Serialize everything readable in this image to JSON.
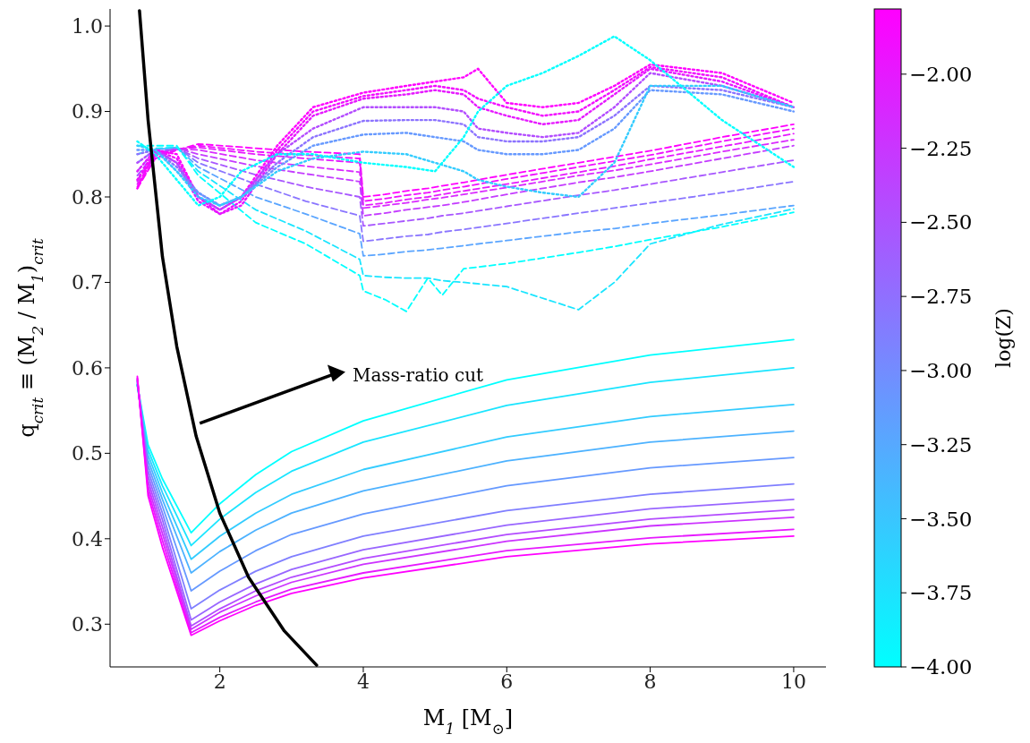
{
  "chart_data": {
    "type": "line",
    "xlabel": "M$_{1}$ [M$_{⊙}$]",
    "ylabel": "q$_{crit}$ ≡ (M$_{2}$ / M$_{1}$)$_{crit}$",
    "clabel": "log(Z)",
    "xlim": [
      0.47,
      10.45
    ],
    "xticks": [
      2,
      4,
      6,
      8,
      10
    ],
    "ylim": [
      0.25,
      1.02
    ],
    "yticks": [
      0.3,
      0.4,
      0.5,
      0.6,
      0.7,
      0.8,
      0.9,
      {
        "value": 1.0,
        "label": "1.0"
      }
    ],
    "clim": [
      -4,
      -1.78
    ],
    "cticks": [
      {
        "value": -4,
        "label": "−4.00"
      },
      {
        "value": -3.75,
        "label": "−3.75"
      },
      {
        "value": -3.5,
        "label": "−3.50"
      },
      {
        "value": -3.25,
        "label": "−3.25"
      },
      {
        "value": -3,
        "label": "−3.00"
      },
      {
        "value": -2.75,
        "label": "−2.75"
      },
      {
        "value": -2.5,
        "label": "−2.50"
      },
      {
        "value": -2.25,
        "label": "−2.25"
      },
      {
        "value": -2,
        "label": "−2.00"
      }
    ],
    "annotations": [
      "Mass-ratio cut"
    ],
    "series": [
      {
        "color": "#00ffff",
        "line_style": "solid",
        "x": [
          0.85,
          1.0,
          1.2,
          1.6,
          2,
          2.5,
          3,
          4,
          6,
          8,
          10
        ],
        "values": [
          0.58,
          0.51,
          0.47,
          0.407,
          0.441,
          0.475,
          0.502,
          0.538,
          0.586,
          0.615,
          0.633
        ]
      },
      {
        "color": "#1ae5ff",
        "line_style": "solid",
        "x": [
          0.85,
          1.0,
          1.2,
          1.6,
          2,
          2.5,
          3,
          4,
          6,
          8,
          10
        ],
        "values": [
          0.58,
          0.504,
          0.462,
          0.392,
          0.423,
          0.454,
          0.479,
          0.513,
          0.556,
          0.583,
          0.6
        ]
      },
      {
        "color": "#33ccff",
        "line_style": "solid",
        "x": [
          0.85,
          1.0,
          1.2,
          1.6,
          2,
          2.5,
          3,
          4,
          6,
          8,
          10
        ],
        "values": [
          0.58,
          0.498,
          0.454,
          0.376,
          0.403,
          0.43,
          0.452,
          0.481,
          0.519,
          0.543,
          0.557
        ]
      },
      {
        "color": "#4db2ff",
        "line_style": "solid",
        "x": [
          0.85,
          1.0,
          1.2,
          1.6,
          2,
          2.5,
          3,
          4,
          6,
          8,
          10
        ],
        "values": [
          0.58,
          0.492,
          0.446,
          0.36,
          0.385,
          0.41,
          0.43,
          0.456,
          0.491,
          0.513,
          0.526
        ]
      },
      {
        "color": "#6699ff",
        "line_style": "solid",
        "x": [
          0.85,
          1.0,
          1.2,
          1.6,
          2,
          2.5,
          3,
          4,
          6,
          8,
          10
        ],
        "values": [
          0.582,
          0.486,
          0.438,
          0.339,
          0.362,
          0.386,
          0.405,
          0.429,
          0.462,
          0.483,
          0.495
        ]
      },
      {
        "color": "#807fff",
        "line_style": "solid",
        "x": [
          0.85,
          1.0,
          1.2,
          1.6,
          2,
          2.5,
          3,
          4,
          6,
          8,
          10
        ],
        "values": [
          0.584,
          0.48,
          0.43,
          0.318,
          0.34,
          0.362,
          0.379,
          0.403,
          0.433,
          0.452,
          0.464
        ]
      },
      {
        "color": "#9966ff",
        "line_style": "solid",
        "x": [
          0.85,
          1.0,
          1.2,
          1.6,
          2,
          2.5,
          3,
          4,
          6,
          8,
          10
        ],
        "values": [
          0.585,
          0.474,
          0.422,
          0.305,
          0.326,
          0.347,
          0.364,
          0.387,
          0.416,
          0.435,
          0.446
        ]
      },
      {
        "color": "#b34cff",
        "line_style": "solid",
        "x": [
          0.85,
          1.0,
          1.2,
          1.6,
          2,
          2.5,
          3,
          4,
          6,
          8,
          10
        ],
        "values": [
          0.586,
          0.468,
          0.414,
          0.298,
          0.318,
          0.339,
          0.355,
          0.377,
          0.405,
          0.423,
          0.434
        ]
      },
      {
        "color": "#cc33ff",
        "line_style": "solid",
        "x": [
          0.85,
          1.0,
          1.2,
          1.6,
          2,
          2.5,
          3,
          4,
          6,
          8,
          10
        ],
        "values": [
          0.587,
          0.462,
          0.406,
          0.294,
          0.314,
          0.333,
          0.349,
          0.37,
          0.397,
          0.415,
          0.425
        ]
      },
      {
        "color": "#e619ff",
        "line_style": "solid",
        "x": [
          0.85,
          1.0,
          1.2,
          1.6,
          2,
          2.5,
          3,
          4,
          6,
          8,
          10
        ],
        "values": [
          0.588,
          0.456,
          0.398,
          0.29,
          0.308,
          0.326,
          0.341,
          0.36,
          0.386,
          0.401,
          0.411
        ]
      },
      {
        "color": "#ff00ff",
        "line_style": "solid",
        "x": [
          0.85,
          1.0,
          1.2,
          1.6,
          2,
          2.5,
          3,
          4,
          6,
          8,
          10
        ],
        "values": [
          0.59,
          0.45,
          0.39,
          0.287,
          0.304,
          0.322,
          0.336,
          0.354,
          0.379,
          0.394,
          0.403
        ]
      },
      {
        "color": "#ff00ff",
        "line_style": "dashed",
        "x": [
          0.85,
          1.1,
          1.4,
          1.7,
          2.5,
          3.2,
          3.95,
          4.0,
          4.3,
          4.6,
          4.9,
          5.1,
          5.4,
          6,
          7,
          7.5,
          8,
          9,
          10
        ],
        "values": [
          0.81,
          0.845,
          0.855,
          0.862,
          0.857,
          0.853,
          0.85,
          0.8,
          0.803,
          0.807,
          0.81,
          0.813,
          0.817,
          0.826,
          0.84,
          0.847,
          0.854,
          0.87,
          0.885
        ]
      },
      {
        "color": "#f00fff",
        "line_style": "dashed",
        "x": [
          0.85,
          1.1,
          1.4,
          1.7,
          2.5,
          3.2,
          3.95,
          4.0,
          4.3,
          4.6,
          4.9,
          5.1,
          5.4,
          6,
          7,
          7.5,
          8,
          9,
          10
        ],
        "values": [
          0.812,
          0.845,
          0.855,
          0.86,
          0.853,
          0.849,
          0.845,
          0.795,
          0.798,
          0.802,
          0.805,
          0.808,
          0.812,
          0.821,
          0.835,
          0.842,
          0.849,
          0.865,
          0.88
        ]
      },
      {
        "color": "#e619ff",
        "line_style": "dashed",
        "x": [
          0.85,
          1.1,
          1.4,
          1.7,
          2.5,
          3.2,
          3.95,
          4.0,
          4.3,
          4.6,
          4.9,
          5.1,
          5.4,
          6,
          7,
          7.5,
          8,
          9,
          10
        ],
        "values": [
          0.815,
          0.848,
          0.856,
          0.858,
          0.85,
          0.845,
          0.84,
          0.79,
          0.793,
          0.797,
          0.8,
          0.803,
          0.807,
          0.815,
          0.829,
          0.836,
          0.844,
          0.859,
          0.874
        ]
      },
      {
        "color": "#d92bff",
        "line_style": "dashed",
        "x": [
          0.85,
          1.1,
          1.4,
          1.7,
          2.5,
          3.2,
          3.95,
          4.0,
          4.3,
          4.6,
          4.9,
          5.1,
          5.4,
          6,
          7,
          7.5,
          8,
          9,
          10
        ],
        "values": [
          0.818,
          0.85,
          0.856,
          0.855,
          0.843,
          0.836,
          0.829,
          0.787,
          0.79,
          0.793,
          0.797,
          0.799,
          0.803,
          0.811,
          0.825,
          0.831,
          0.838,
          0.853,
          0.867
        ]
      },
      {
        "color": "#c43bff",
        "line_style": "dashed",
        "x": [
          0.85,
          1.1,
          1.4,
          1.7,
          2.5,
          3.2,
          3.95,
          4.0,
          4.3,
          4.6,
          4.9,
          5.1,
          5.4,
          6,
          7,
          7.5,
          8,
          9,
          10
        ],
        "values": [
          0.82,
          0.85,
          0.857,
          0.85,
          0.836,
          0.827,
          0.818,
          0.778,
          0.781,
          0.785,
          0.788,
          0.79,
          0.794,
          0.803,
          0.817,
          0.823,
          0.83,
          0.845,
          0.86
        ]
      },
      {
        "color": "#a857ff",
        "line_style": "dashed",
        "x": [
          0.85,
          1.1,
          1.4,
          1.7,
          2.5,
          3.2,
          3.95,
          4.0,
          4.3,
          4.6,
          4.9,
          5.1,
          5.4,
          6,
          7,
          7.5,
          8,
          9,
          10
        ],
        "values": [
          0.825,
          0.852,
          0.857,
          0.845,
          0.826,
          0.812,
          0.8,
          0.766,
          0.769,
          0.772,
          0.775,
          0.778,
          0.781,
          0.789,
          0.802,
          0.808,
          0.815,
          0.829,
          0.843
        ]
      },
      {
        "color": "#8a75ff",
        "line_style": "dashed",
        "x": [
          0.85,
          1.1,
          1.4,
          1.7,
          2.5,
          3.2,
          3.95,
          4.0,
          4.3,
          4.6,
          4.9,
          5.1,
          5.4,
          6,
          7,
          7.5,
          8,
          9,
          10
        ],
        "values": [
          0.83,
          0.855,
          0.858,
          0.84,
          0.815,
          0.795,
          0.778,
          0.748,
          0.751,
          0.754,
          0.756,
          0.759,
          0.762,
          0.769,
          0.781,
          0.787,
          0.793,
          0.805,
          0.818
        ]
      },
      {
        "color": "#5aa5ff",
        "line_style": "dashed",
        "x": [
          0.85,
          1.1,
          1.4,
          1.7,
          2.5,
          3.2,
          3.95,
          4.0,
          4.3,
          4.6,
          4.9,
          5.1,
          5.4,
          6,
          7,
          7.5,
          8,
          9,
          10
        ],
        "values": [
          0.84,
          0.855,
          0.858,
          0.835,
          0.8,
          0.78,
          0.757,
          0.731,
          0.733,
          0.736,
          0.738,
          0.74,
          0.743,
          0.749,
          0.759,
          0.763,
          0.769,
          0.779,
          0.79
        ]
      },
      {
        "color": "#1ae5ff",
        "line_style": "dashed",
        "x": [
          0.85,
          1.1,
          1.4,
          1.7,
          2.5,
          3.2,
          3.95,
          4.0,
          4.3,
          4.6,
          4.9,
          5.1,
          5.4,
          6,
          7,
          7.5,
          8,
          9,
          10
        ],
        "values": [
          0.85,
          0.857,
          0.858,
          0.83,
          0.785,
          0.76,
          0.727,
          0.708,
          0.706,
          0.705,
          0.705,
          0.702,
          0.7,
          0.695,
          0.668,
          0.7,
          0.745,
          0.768,
          0.786
        ]
      },
      {
        "color": "#00ffff",
        "line_style": "dashed",
        "x": [
          0.85,
          1.1,
          1.4,
          1.7,
          2.5,
          3.2,
          3.95,
          4.0,
          4.3,
          4.6,
          4.9,
          5.1,
          5.4,
          6,
          7,
          7.5,
          8,
          9,
          10
        ],
        "values": [
          0.86,
          0.86,
          0.86,
          0.825,
          0.77,
          0.745,
          0.708,
          0.69,
          0.68,
          0.666,
          0.705,
          0.685,
          0.716,
          0.722,
          0.735,
          0.742,
          0.75,
          0.765,
          0.782
        ]
      },
      {
        "color": "#ff00ff",
        "line_style": "dotted",
        "x": [
          0.85,
          1.1,
          1.4,
          1.7,
          2.0,
          2.3,
          2.8,
          3.3,
          4,
          4.6,
          5,
          5.4,
          5.6,
          6,
          6.5,
          7,
          7.5,
          8,
          9,
          10
        ],
        "values": [
          0.81,
          0.855,
          0.85,
          0.8,
          0.785,
          0.8,
          0.86,
          0.905,
          0.922,
          0.93,
          0.935,
          0.94,
          0.95,
          0.91,
          0.905,
          0.91,
          0.93,
          0.955,
          0.945,
          0.91
        ]
      },
      {
        "color": "#f20dff",
        "line_style": "dotted",
        "x": [
          0.85,
          1.1,
          1.4,
          1.7,
          2.0,
          2.3,
          2.8,
          3.3,
          4,
          4.6,
          5,
          5.4,
          5.6,
          6,
          6.5,
          7,
          7.5,
          8,
          9,
          10
        ],
        "values": [
          0.82,
          0.855,
          0.845,
          0.8,
          0.78,
          0.795,
          0.855,
          0.9,
          0.918,
          0.925,
          0.93,
          0.925,
          0.915,
          0.905,
          0.895,
          0.9,
          0.925,
          0.952,
          0.94,
          0.905
        ]
      },
      {
        "color": "#e619ff",
        "line_style": "dotted",
        "x": [
          0.85,
          1.1,
          1.4,
          1.7,
          2.0,
          2.3,
          2.8,
          3.3,
          4,
          4.6,
          5,
          5.4,
          5.6,
          6,
          6.5,
          7,
          7.5,
          8,
          9,
          10
        ],
        "values": [
          0.83,
          0.855,
          0.84,
          0.795,
          0.78,
          0.79,
          0.85,
          0.895,
          0.915,
          0.92,
          0.925,
          0.92,
          0.905,
          0.895,
          0.885,
          0.89,
          0.92,
          0.95,
          0.935,
          0.905
        ]
      },
      {
        "color": "#b34cff",
        "line_style": "dotted",
        "x": [
          0.85,
          1.1,
          1.4,
          1.7,
          2.0,
          2.3,
          2.8,
          3.3,
          4,
          4.6,
          5,
          5.4,
          5.6,
          6,
          6.5,
          7,
          7.5,
          8,
          9,
          10
        ],
        "values": [
          0.84,
          0.855,
          0.84,
          0.8,
          0.785,
          0.8,
          0.85,
          0.88,
          0.905,
          0.905,
          0.905,
          0.9,
          0.88,
          0.875,
          0.87,
          0.875,
          0.905,
          0.945,
          0.93,
          0.905
        ]
      },
      {
        "color": "#8c73ff",
        "line_style": "dotted",
        "x": [
          0.85,
          1.1,
          1.4,
          1.7,
          2.0,
          2.3,
          2.8,
          3.3,
          4,
          4.6,
          5,
          5.4,
          5.6,
          6,
          6.5,
          7,
          7.5,
          8,
          9,
          10
        ],
        "values": [
          0.85,
          0.855,
          0.835,
          0.805,
          0.79,
          0.8,
          0.84,
          0.87,
          0.889,
          0.89,
          0.89,
          0.885,
          0.87,
          0.865,
          0.865,
          0.87,
          0.895,
          0.93,
          0.925,
          0.905
        ]
      },
      {
        "color": "#6699ff",
        "line_style": "dotted",
        "x": [
          0.85,
          1.1,
          1.4,
          1.7,
          2.0,
          2.3,
          2.8,
          3.3,
          4,
          4.6,
          5,
          5.4,
          5.6,
          6,
          6.5,
          7,
          7.5,
          8,
          9,
          10
        ],
        "values": [
          0.855,
          0.855,
          0.83,
          0.805,
          0.79,
          0.8,
          0.835,
          0.86,
          0.873,
          0.875,
          0.87,
          0.865,
          0.855,
          0.85,
          0.85,
          0.855,
          0.88,
          0.925,
          0.92,
          0.9
        ]
      },
      {
        "color": "#33ccff",
        "line_style": "dotted",
        "x": [
          0.85,
          1.1,
          1.4,
          1.7,
          2.0,
          2.3,
          2.8,
          3.3,
          4,
          4.6,
          5,
          5.4,
          5.6,
          6,
          6.5,
          7,
          7.5,
          8,
          9,
          10
        ],
        "values": [
          0.86,
          0.855,
          0.83,
          0.8,
          0.79,
          0.8,
          0.83,
          0.845,
          0.853,
          0.85,
          0.84,
          0.83,
          0.82,
          0.812,
          0.805,
          0.8,
          0.84,
          0.93,
          0.93,
          0.905
        ]
      },
      {
        "color": "#00ffff",
        "line_style": "dotted",
        "x": [
          0.85,
          1.1,
          1.4,
          1.7,
          2.0,
          2.3,
          2.8,
          3.3,
          4,
          4.6,
          5,
          5.4,
          5.6,
          6,
          6.5,
          7,
          7.5,
          8,
          9,
          10
        ],
        "values": [
          0.865,
          0.85,
          0.82,
          0.79,
          0.8,
          0.83,
          0.85,
          0.85,
          0.84,
          0.835,
          0.83,
          0.87,
          0.9,
          0.93,
          0.945,
          0.965,
          0.988,
          0.96,
          0.89,
          0.835
        ]
      },
      {
        "color": "#000000",
        "line_style": "solid",
        "x": [
          0.88,
          1.0,
          1.2,
          1.4,
          1.67,
          2.0,
          2.4,
          2.9,
          3.35
        ],
        "values": [
          1.018,
          0.89,
          0.73,
          0.625,
          0.52,
          0.43,
          0.355,
          0.292,
          0.252
        ]
      }
    ]
  }
}
